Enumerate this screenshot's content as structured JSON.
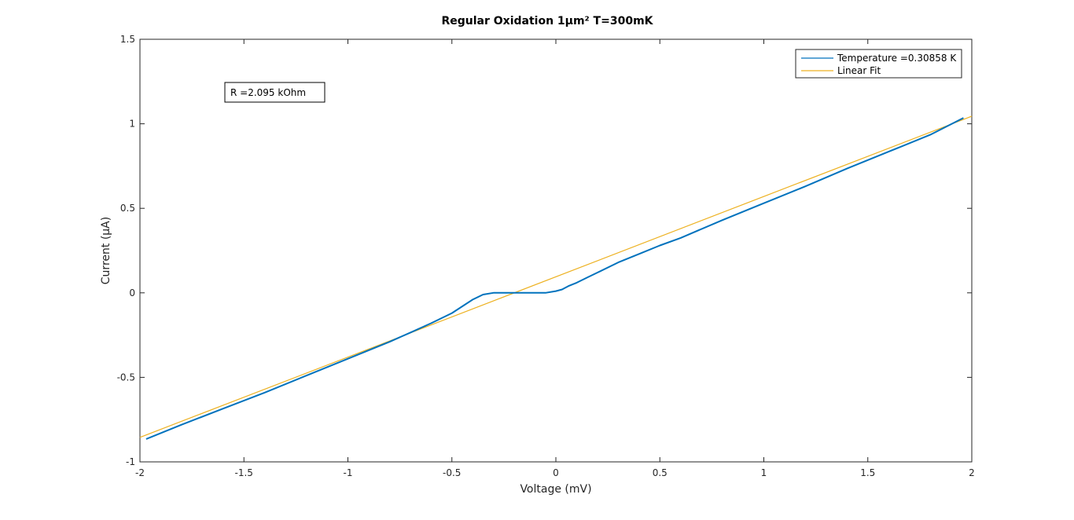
{
  "chart_data": {
    "type": "line",
    "title": "Regular Oxidation 1µm² T=300mK",
    "xlabel": "Voltage (mV)",
    "ylabel": "Current (µA)",
    "xlim": [
      -2,
      2
    ],
    "ylim": [
      -1,
      1.5
    ],
    "xticks": [
      -2,
      -1.5,
      -1,
      -0.5,
      0,
      0.5,
      1,
      1.5,
      2
    ],
    "xtick_labels": [
      "-2",
      "-1.5",
      "-1",
      "-0.5",
      "0",
      "0.5",
      "1",
      "1.5",
      "2"
    ],
    "yticks": [
      -1,
      -0.5,
      0,
      0.5,
      1,
      1.5
    ],
    "ytick_labels": [
      "-1",
      "-0.5",
      "0",
      "0.5",
      "1",
      "1.5"
    ],
    "grid": false,
    "legend_position": "top-right",
    "annotation": "R =2.095 kOhm",
    "series": [
      {
        "name": "Temperature =0.30858 K",
        "color": "#0072BD",
        "x": [
          -1.97,
          -1.8,
          -1.6,
          -1.4,
          -1.2,
          -1.0,
          -0.8,
          -0.7,
          -0.6,
          -0.5,
          -0.45,
          -0.4,
          -0.35,
          -0.3,
          -0.25,
          -0.2,
          -0.15,
          -0.1,
          -0.05,
          0.0,
          0.03,
          0.06,
          0.1,
          0.15,
          0.2,
          0.3,
          0.4,
          0.5,
          0.6,
          0.8,
          1.0,
          1.2,
          1.4,
          1.6,
          1.8,
          1.96
        ],
        "y": [
          -0.865,
          -0.78,
          -0.685,
          -0.59,
          -0.49,
          -0.39,
          -0.29,
          -0.235,
          -0.18,
          -0.12,
          -0.08,
          -0.04,
          -0.01,
          0.0,
          0.0,
          0.0,
          0.0,
          0.0,
          0.0,
          0.01,
          0.02,
          0.04,
          0.06,
          0.09,
          0.12,
          0.18,
          0.23,
          0.28,
          0.325,
          0.43,
          0.53,
          0.63,
          0.735,
          0.835,
          0.935,
          1.035
        ]
      },
      {
        "name": "Linear Fit",
        "color": "#EDB120",
        "x": [
          -2,
          2
        ],
        "y": [
          -0.855,
          1.045
        ]
      }
    ]
  }
}
